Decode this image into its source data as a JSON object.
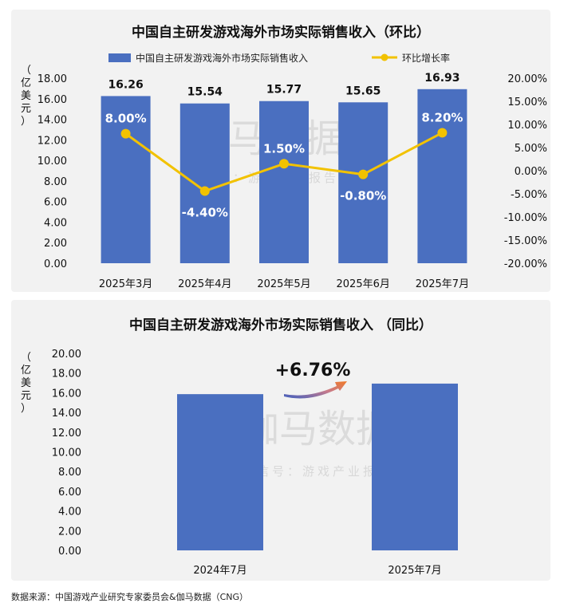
{
  "chart_data": [
    {
      "type": "bar+line",
      "title": "中国自主研发游戏海外市场实际销售收入（环比）",
      "ylabel": "（亿美元）",
      "categories": [
        "2025年3月",
        "2025年4月",
        "2025年5月",
        "2025年6月",
        "2025年7月"
      ],
      "series": [
        {
          "name": "中国自主研发游戏海外市场实际销售收入",
          "type": "bar",
          "axis": "left",
          "values": [
            16.26,
            15.54,
            15.77,
            15.65,
            16.93
          ],
          "labels": [
            "16.26",
            "15.54",
            "15.77",
            "15.65",
            "16.93"
          ]
        },
        {
          "name": "环比增长率",
          "type": "line",
          "axis": "right",
          "values": [
            8.0,
            -4.4,
            1.5,
            -0.8,
            8.2
          ],
          "labels": [
            "8.00%",
            "-4.40%",
            "1.50%",
            "-0.80%",
            "8.20%"
          ]
        }
      ],
      "ylim_left": [
        0,
        18
      ],
      "yticks_left": [
        "0.00",
        "2.00",
        "4.00",
        "6.00",
        "8.00",
        "10.00",
        "12.00",
        "14.00",
        "16.00",
        "18.00"
      ],
      "ylim_right": [
        -20,
        20
      ],
      "yticks_right": [
        "-20.00%",
        "-15.00%",
        "-10.00%",
        "-5.00%",
        "0.00%",
        "5.00%",
        "10.00%",
        "15.00%",
        "20.00%"
      ],
      "legend_position": "top",
      "colors": {
        "bar": "#4a6fc0",
        "line": "#f2c200"
      }
    },
    {
      "type": "bar",
      "title": "中国自主研发游戏海外市场实际销售收入 （同比）",
      "ylabel": "（亿美元）",
      "categories": [
        "2024年7月",
        "2025年7月"
      ],
      "values": [
        15.86,
        16.93
      ],
      "ylim": [
        0,
        20
      ],
      "yticks": [
        "0.00",
        "2.00",
        "4.00",
        "6.00",
        "8.00",
        "10.00",
        "12.00",
        "14.00",
        "16.00",
        "18.00",
        "20.00"
      ],
      "annotation": "+6.76%",
      "colors": {
        "bar": "#4a6fc0"
      }
    }
  ],
  "watermark": {
    "main": "伽马数据",
    "sub": "微信号：游戏产业报告"
  },
  "source": "数据来源：中国游戏产业研究专家委员会&伽马数据（CNG）"
}
